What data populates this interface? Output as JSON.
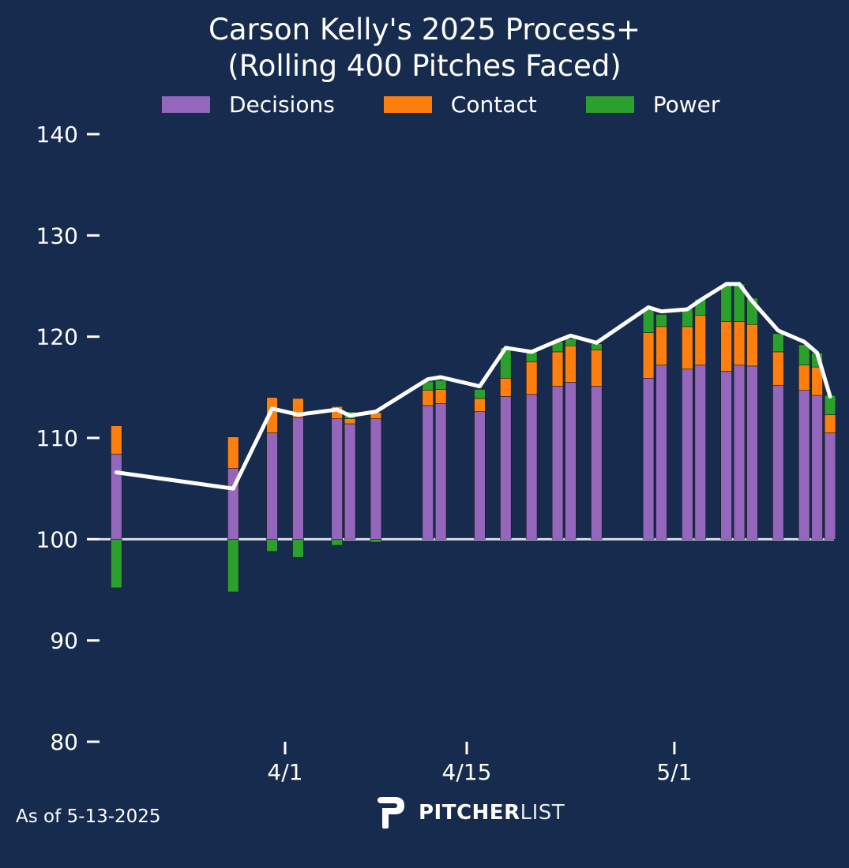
{
  "colors": {
    "background": "#172b4f",
    "decisions": "#9467bd",
    "contact": "#ff7f0e",
    "power": "#2ca02c",
    "line": "#ffffff",
    "baseline": "#d9dde6"
  },
  "footer": {
    "as_of": "As of 5-13-2025"
  },
  "logo": {
    "bold": "PITCHER",
    "light": "LIST"
  },
  "chart_data": {
    "type": "bar",
    "title": "Carson Kelly's 2025 Process+",
    "subtitle": "(Rolling 400 Pitches Faced)",
    "legend": [
      "Decisions",
      "Contact",
      "Power"
    ],
    "legend_position": "top",
    "baseline": 100,
    "ylim": [
      80,
      140
    ],
    "yticks": [
      140,
      130,
      120,
      110,
      100,
      90,
      80
    ],
    "xlim": [
      -1.3,
      55.3
    ],
    "xticks": [
      {
        "label": "4/1",
        "x": 13
      },
      {
        "label": "4/15",
        "x": 27
      },
      {
        "label": "5/1",
        "x": 43
      }
    ],
    "series": [
      {
        "name": "Decisions",
        "values": [
          8.4,
          7.0,
          10.5,
          12.0,
          11.9,
          11.4,
          11.9,
          13.2,
          13.4,
          12.6,
          14.1,
          14.3,
          15.1,
          15.5,
          15.1,
          15.9,
          17.2,
          16.8,
          17.2,
          16.6,
          17.2,
          17.1,
          15.2,
          14.7,
          14.2,
          10.5
        ]
      },
      {
        "name": "Contact",
        "values": [
          2.8,
          3.1,
          3.5,
          1.9,
          1.2,
          0.5,
          0.6,
          1.5,
          1.4,
          1.3,
          1.8,
          3.2,
          3.4,
          3.6,
          3.6,
          4.5,
          3.8,
          4.2,
          4.9,
          4.9,
          4.3,
          4.1,
          3.3,
          2.5,
          2.8,
          1.8
        ]
      },
      {
        "name": "Power",
        "values": [
          -4.8,
          -5.2,
          -1.2,
          -1.8,
          -0.6,
          0.7,
          -0.3,
          0.9,
          0.9,
          0.9,
          3.0,
          1.0,
          1.0,
          0.7,
          0.6,
          2.3,
          1.2,
          1.7,
          1.6,
          3.6,
          3.7,
          2.6,
          1.8,
          2.0,
          1.4,
          1.9
        ]
      }
    ],
    "x": [
      0,
      9,
      12,
      14,
      17,
      18,
      20,
      24,
      25,
      28,
      30,
      32,
      34,
      35,
      37,
      41,
      42,
      44,
      45,
      47,
      48,
      49,
      51,
      53,
      54,
      55
    ],
    "line": {
      "x": [
        0,
        9,
        12,
        14,
        17,
        18,
        20,
        24,
        25,
        28,
        30,
        32,
        34,
        35,
        37,
        41,
        42,
        44,
        45,
        47,
        48,
        49,
        51,
        53,
        54,
        55
      ],
      "y": [
        106.6,
        105.0,
        112.9,
        112.3,
        112.8,
        112.2,
        112.6,
        115.8,
        116.0,
        115.1,
        118.9,
        118.5,
        119.6,
        120.1,
        119.4,
        122.9,
        122.5,
        122.7,
        123.6,
        125.2,
        125.2,
        123.5,
        120.6,
        119.5,
        118.4,
        114.1
      ]
    }
  }
}
